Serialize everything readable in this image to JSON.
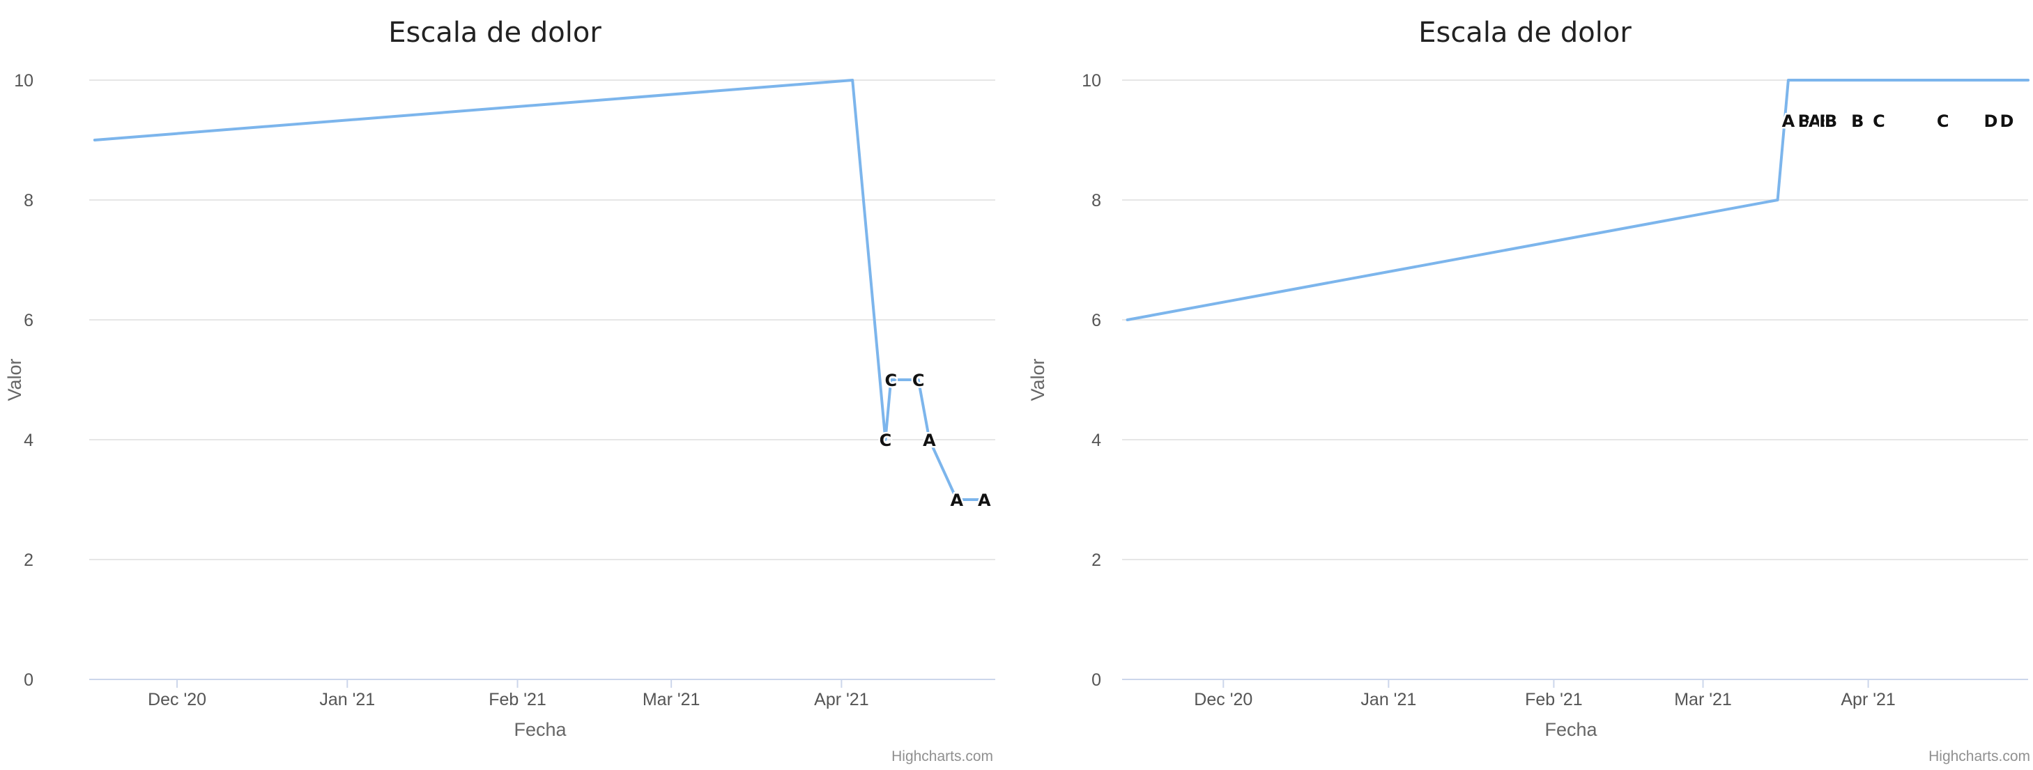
{
  "colors": {
    "series": "#7cb5ec"
  },
  "chart_data": [
    {
      "type": "line",
      "title": "Escala de dolor",
      "xlabel": "Fecha",
      "ylabel": "Valor",
      "ylim": [
        0,
        10
      ],
      "yticks": [
        "0",
        "2",
        "4",
        "6",
        "8",
        "10"
      ],
      "xlim": [
        "2020-11-15",
        "2021-04-29"
      ],
      "xticks": [
        {
          "date": "2020-12-01",
          "label": "Dec '20"
        },
        {
          "date": "2021-01-01",
          "label": "Jan '21"
        },
        {
          "date": "2021-02-01",
          "label": "Feb '21"
        },
        {
          "date": "2021-03-01",
          "label": "Mar '21"
        },
        {
          "date": "2021-04-01",
          "label": "Apr '21"
        }
      ],
      "grid": true,
      "credit": "Highcharts.com",
      "series": [
        {
          "points": [
            {
              "x": "2020-11-16",
              "y": 9,
              "label": ""
            },
            {
              "x": "2021-04-03",
              "y": 10,
              "label": ""
            },
            {
              "x": "2021-04-09",
              "y": 4,
              "label": "C"
            },
            {
              "x": "2021-04-10",
              "y": 5,
              "label": "C"
            },
            {
              "x": "2021-04-15",
              "y": 5,
              "label": "C"
            },
            {
              "x": "2021-04-17",
              "y": 4,
              "label": "A"
            },
            {
              "x": "2021-04-22",
              "y": 3,
              "label": "A"
            },
            {
              "x": "2021-04-27",
              "y": 3,
              "label": "A"
            }
          ]
        }
      ]
    },
    {
      "type": "line",
      "title": "Escala de dolor",
      "xlabel": "Fecha",
      "ylabel": "Valor",
      "ylim": [
        0,
        10
      ],
      "yticks": [
        "0",
        "2",
        "4",
        "6",
        "8",
        "10"
      ],
      "xlim": [
        "2020-11-12",
        "2021-05-01"
      ],
      "xticks": [
        {
          "date": "2020-12-01",
          "label": "Dec '20"
        },
        {
          "date": "2021-01-01",
          "label": "Jan '21"
        },
        {
          "date": "2021-02-01",
          "label": "Feb '21"
        },
        {
          "date": "2021-03-01",
          "label": "Mar '21"
        },
        {
          "date": "2021-04-01",
          "label": "Apr '21"
        }
      ],
      "grid": true,
      "credit": "Highcharts.com",
      "series": [
        {
          "points": [
            {
              "x": "2020-11-13",
              "y": 6,
              "label": ""
            },
            {
              "x": "2021-03-15",
              "y": 8,
              "label": ""
            },
            {
              "x": "2021-03-17",
              "y": 10,
              "label": "A"
            },
            {
              "x": "2021-03-20",
              "y": 10,
              "label": "B"
            },
            {
              "x": "2021-03-22",
              "y": 10,
              "label": "A"
            },
            {
              "x": "2021-03-24",
              "y": 10,
              "label": "B"
            },
            {
              "x": "2021-03-25",
              "y": 10,
              "label": "B"
            },
            {
              "x": "2021-03-30",
              "y": 10,
              "label": "B"
            },
            {
              "x": "2021-04-03",
              "y": 10,
              "label": "C"
            },
            {
              "x": "2021-04-15",
              "y": 10,
              "label": "C"
            },
            {
              "x": "2021-04-24",
              "y": 10,
              "label": "D"
            },
            {
              "x": "2021-04-27",
              "y": 10,
              "label": "D"
            },
            {
              "x": "2021-05-01",
              "y": 10,
              "label": ""
            }
          ]
        }
      ]
    }
  ]
}
